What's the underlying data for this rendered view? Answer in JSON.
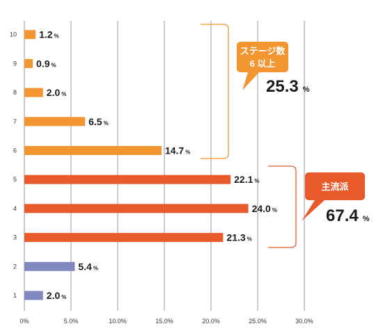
{
  "chart_data": {
    "type": "bar",
    "orientation": "horizontal",
    "categories": [
      "1",
      "2",
      "3",
      "4",
      "5",
      "6",
      "7",
      "8",
      "9",
      "10"
    ],
    "values": [
      2.0,
      5.4,
      21.3,
      24.0,
      22.1,
      14.7,
      6.5,
      2.0,
      0.9,
      1.2
    ],
    "value_labels": [
      "2.0",
      "5.4",
      "21.3",
      "24.0",
      "22.1",
      "14.7",
      "6.5",
      "2.0",
      "0.9",
      "1.2"
    ],
    "value_unit": "%",
    "bar_colors": [
      "#8088bf",
      "#8088bf",
      "#e95a2b",
      "#e95a2b",
      "#e95a2b",
      "#f39530",
      "#f39530",
      "#f39530",
      "#f39530",
      "#f39530"
    ],
    "x_ticks": [
      "0%",
      "5.0%",
      "10.0%",
      "15.0%",
      "20.0%",
      "25.0%",
      "30.0%"
    ],
    "xlim": [
      0,
      30
    ],
    "grid": "vertical",
    "title": "",
    "xlabel": "",
    "ylabel": ""
  },
  "annotations": [
    {
      "name": "stage-6-plus",
      "lines": [
        "ステージ数",
        "6 以上"
      ],
      "value": "25.3",
      "unit": "%",
      "color": "#f39530",
      "range": [
        "6",
        "10"
      ]
    },
    {
      "name": "mainstream",
      "lines": [
        "主流派"
      ],
      "value": "67.4",
      "unit": "%",
      "color": "#e95a2b",
      "range": [
        "3",
        "5"
      ]
    }
  ]
}
